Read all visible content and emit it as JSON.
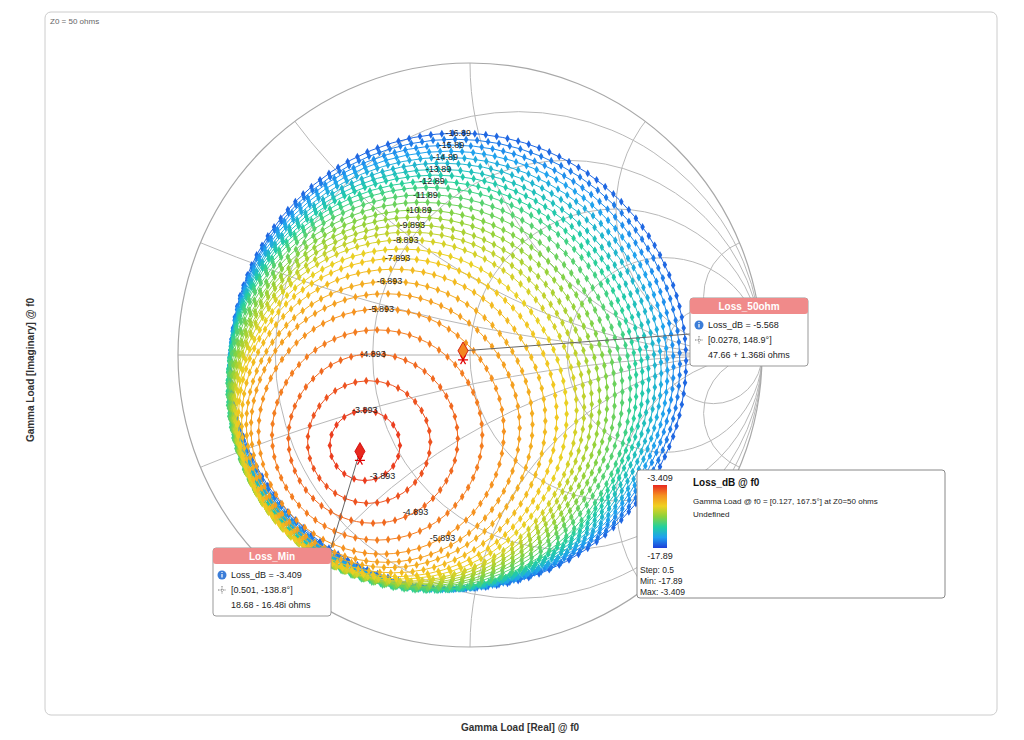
{
  "chart_data": {
    "type": "smith_contour",
    "subtitle": "Z0 = 50 ohms",
    "xlabel": "Gamma Load [Real] @ f0",
    "ylabel": "Gamma Load [Imaginary] @ f0",
    "xlim": [
      -1,
      1
    ],
    "ylim": [
      -1,
      1
    ],
    "tick_labels": false,
    "grid": true,
    "resistance_circles": [
      0.2,
      0.5,
      1,
      2,
      5
    ],
    "reactance_arcs": [
      0.2,
      0.5,
      1,
      2,
      5
    ],
    "marker": "diamond",
    "contours": [
      {
        "level": -3.893,
        "center": [
          -0.36,
          -0.31
        ],
        "radius": 0.12,
        "label": "-3.893"
      },
      {
        "level": -4.393,
        "center": [
          -0.346,
          -0.298
        ],
        "radius": 0.21
      },
      {
        "level": -4.893,
        "center": [
          -0.332,
          -0.286
        ],
        "radius": 0.29,
        "label": "-4.893"
      },
      {
        "level": -5.393,
        "center": [
          -0.318,
          -0.274
        ],
        "radius": 0.36
      },
      {
        "level": -5.893,
        "center": [
          -0.304,
          -0.262
        ],
        "radius": 0.42,
        "label": "-5.893"
      },
      {
        "level": -6.393,
        "center": [
          -0.29,
          -0.25
        ],
        "radius": 0.46
      },
      {
        "level": -6.893,
        "center": [
          -0.276,
          -0.238
        ],
        "radius": 0.49,
        "label": "-6.893"
      },
      {
        "level": -7.393,
        "center": [
          -0.262,
          -0.226
        ],
        "radius": 0.52
      },
      {
        "level": -7.893,
        "center": [
          -0.248,
          -0.214
        ],
        "radius": 0.545,
        "label": "-7.893"
      },
      {
        "level": -8.393,
        "center": [
          -0.234,
          -0.202
        ],
        "radius": 0.565
      },
      {
        "level": -8.893,
        "center": [
          -0.22,
          -0.19
        ],
        "radius": 0.585,
        "label": "-8.893"
      },
      {
        "level": -9.393,
        "center": [
          -0.209,
          -0.179
        ],
        "radius": 0.6
      },
      {
        "level": -9.893,
        "center": [
          -0.198,
          -0.169
        ],
        "radius": 0.615,
        "label": "-9.893"
      },
      {
        "level": -10.39,
        "center": [
          -0.186,
          -0.158
        ],
        "radius": 0.63
      },
      {
        "level": -10.89,
        "center": [
          -0.175,
          -0.148
        ],
        "radius": 0.645,
        "label": "-10.89"
      },
      {
        "level": -11.39,
        "center": [
          -0.164,
          -0.137
        ],
        "radius": 0.66
      },
      {
        "level": -11.89,
        "center": [
          -0.153,
          -0.126
        ],
        "radius": 0.675,
        "label": "-11.89"
      },
      {
        "level": -12.39,
        "center": [
          -0.141,
          -0.116
        ],
        "radius": 0.69
      },
      {
        "level": -12.89,
        "center": [
          -0.13,
          -0.105
        ],
        "radius": 0.7,
        "label": "-12.89"
      },
      {
        "level": -13.39,
        "center": [
          -0.119,
          -0.094
        ],
        "radius": 0.71
      },
      {
        "level": -13.89,
        "center": [
          -0.108,
          -0.084
        ],
        "radius": 0.72,
        "label": "-13.89"
      },
      {
        "level": -14.39,
        "center": [
          -0.096,
          -0.073
        ],
        "radius": 0.73
      },
      {
        "level": -14.89,
        "center": [
          -0.085,
          -0.063
        ],
        "radius": 0.74,
        "label": "-14.89"
      },
      {
        "level": -15.39,
        "center": [
          -0.074,
          -0.052
        ],
        "radius": 0.75
      },
      {
        "level": -15.89,
        "center": [
          -0.063,
          -0.041
        ],
        "radius": 0.76,
        "label": "-15.89"
      },
      {
        "level": -16.39,
        "center": [
          -0.051,
          -0.031
        ],
        "radius": 0.77
      },
      {
        "level": -16.89,
        "center": [
          -0.04,
          -0.02
        ],
        "radius": 0.78,
        "label": "-16.89"
      }
    ],
    "markers": [
      {
        "name": "Loss_50ohm",
        "value": -5.568,
        "value_label": "Loss_dB = -5.568",
        "gamma": [
          0.0278,
          148.9
        ],
        "gamma_label": "[0.0278, 148.9°]",
        "impedance_label": "47.66 + 1.368i ohms"
      },
      {
        "name": "Loss_Min",
        "value": -3.409,
        "value_label": "Loss_dB = -3.409",
        "gamma": [
          0.501,
          -138.8
        ],
        "gamma_label": "[0.501, -138.8°]",
        "impedance_label": "18.68 - 16.48i ohms"
      }
    ],
    "colorbar": {
      "title": "Loss_dB @ f0",
      "cursor_label": "Gamma Load @ f0 = [0.127, 167.5°] at Z0=50 ohms",
      "status": "Undefined",
      "range": [
        -17.89,
        -3.409
      ],
      "ticks": [
        -3.409,
        -17.89
      ],
      "step_label": "Step: 0.5",
      "min_label": "Min: -17.89",
      "max_label": "Max: -3.409"
    }
  }
}
